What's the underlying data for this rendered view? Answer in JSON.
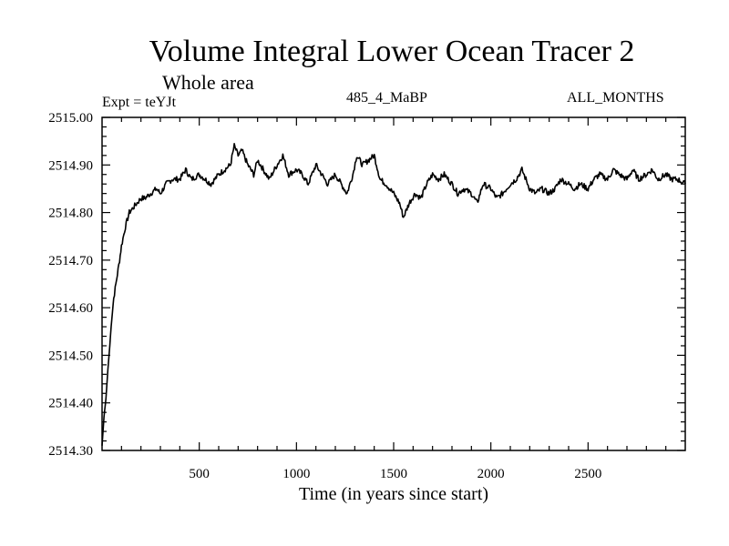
{
  "chart_data": {
    "type": "line",
    "title": "Volume Integral Lower Ocean Tracer 2",
    "subtitle": "Whole area",
    "left_note": "Expt = teYJt",
    "center_note": "485_4_MaBP",
    "right_note": "ALL_MONTHS",
    "xlabel": "Time (in years since start)",
    "ylabel": "",
    "xlim": [
      0,
      3000
    ],
    "ylim": [
      2514.3,
      2515.0
    ],
    "xticks": [
      500,
      1000,
      1500,
      2000,
      2500
    ],
    "yticks": [
      "2514.30",
      "2514.40",
      "2514.50",
      "2514.60",
      "2514.70",
      "2514.80",
      "2514.90",
      "2515.00"
    ],
    "series": [
      {
        "name": "Lower Ocean Tracer 2",
        "x": [
          0,
          10,
          20,
          30,
          40,
          50,
          60,
          75,
          90,
          100,
          120,
          140,
          160,
          180,
          200,
          220,
          250,
          280,
          300,
          330,
          360,
          400,
          430,
          460,
          500,
          530,
          560,
          600,
          630,
          660,
          680,
          700,
          720,
          750,
          780,
          800,
          830,
          860,
          900,
          930,
          960,
          1000,
          1030,
          1060,
          1080,
          1100,
          1130,
          1160,
          1200,
          1230,
          1260,
          1290,
          1310,
          1340,
          1370,
          1400,
          1430,
          1460,
          1500,
          1530,
          1550,
          1580,
          1610,
          1640,
          1670,
          1700,
          1730,
          1760,
          1800,
          1830,
          1860,
          1900,
          1930,
          1960,
          2000,
          2030,
          2060,
          2100,
          2130,
          2160,
          2200,
          2230,
          2260,
          2300,
          2330,
          2360,
          2400,
          2430,
          2460,
          2500,
          2530,
          2560,
          2600,
          2630,
          2660,
          2700,
          2730,
          2760,
          2800,
          2830,
          2860,
          2900,
          2930,
          2960,
          3000
        ],
        "values": [
          2514.31,
          2514.37,
          2514.41,
          2514.47,
          2514.52,
          2514.58,
          2514.62,
          2514.66,
          2514.7,
          2514.73,
          2514.77,
          2514.8,
          2514.81,
          2514.82,
          2514.83,
          2514.83,
          2514.84,
          2514.85,
          2514.84,
          2514.86,
          2514.87,
          2514.87,
          2514.89,
          2514.87,
          2514.88,
          2514.87,
          2514.86,
          2514.88,
          2514.89,
          2514.9,
          2514.94,
          2514.92,
          2514.93,
          2514.9,
          2514.88,
          2514.91,
          2514.89,
          2514.87,
          2514.9,
          2514.92,
          2514.88,
          2514.89,
          2514.88,
          2514.86,
          2514.88,
          2514.9,
          2514.88,
          2514.86,
          2514.88,
          2514.86,
          2514.84,
          2514.88,
          2514.92,
          2514.9,
          2514.91,
          2514.92,
          2514.87,
          2514.86,
          2514.84,
          2514.82,
          2514.79,
          2514.82,
          2514.84,
          2514.83,
          2514.86,
          2514.88,
          2514.87,
          2514.88,
          2514.86,
          2514.84,
          2514.85,
          2514.84,
          2514.82,
          2514.86,
          2514.85,
          2514.83,
          2514.84,
          2514.86,
          2514.87,
          2514.89,
          2514.85,
          2514.84,
          2514.85,
          2514.84,
          2514.85,
          2514.87,
          2514.86,
          2514.85,
          2514.86,
          2514.85,
          2514.87,
          2514.88,
          2514.87,
          2514.89,
          2514.88,
          2514.87,
          2514.89,
          2514.87,
          2514.88,
          2514.89,
          2514.87,
          2514.88,
          2514.87,
          2514.87,
          2514.86
        ]
      }
    ],
    "grid": false,
    "line_color": "#000000"
  }
}
